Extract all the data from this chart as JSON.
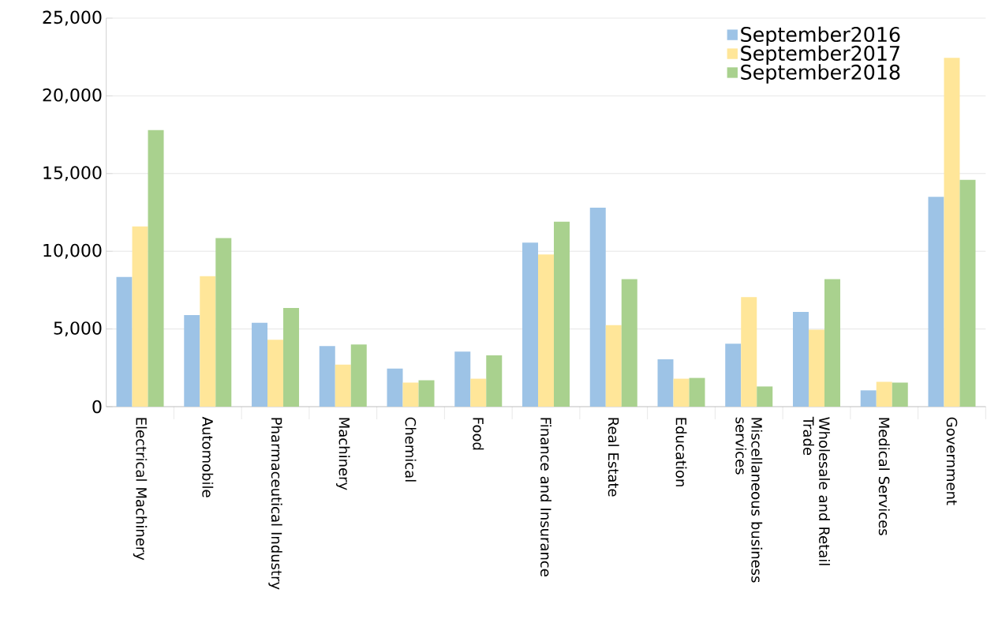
{
  "chart_data": {
    "type": "bar",
    "categories": [
      "Electrical Machinery",
      "Automobile",
      "Pharmaceutical Industry",
      "Machinery",
      "Chemical",
      "Food",
      "Finance and Insurance",
      "Real Estate",
      "Education",
      "Miscellaneous business services",
      "Wholesale and Retail Trade",
      "Medical Services",
      "Government"
    ],
    "series": [
      {
        "name": "September2016",
        "color": "#9dc3e6",
        "values": [
          8350,
          5900,
          5400,
          3900,
          2450,
          3550,
          10550,
          12800,
          3050,
          4050,
          6100,
          1050,
          13500
        ]
      },
      {
        "name": "September2017",
        "color": "#ffe699",
        "values": [
          11600,
          8400,
          4300,
          2700,
          1550,
          1800,
          9800,
          5250,
          1800,
          7050,
          4950,
          1600,
          22450
        ]
      },
      {
        "name": "September2018",
        "color": "#a9d18e",
        "values": [
          17800,
          10850,
          6350,
          4000,
          1700,
          3300,
          11900,
          8200,
          1850,
          1300,
          8200,
          1550,
          14600
        ]
      }
    ],
    "ylim": [
      0,
      25000
    ],
    "yticks": [
      {
        "value": 0,
        "label": "0"
      },
      {
        "value": 5000,
        "label": "5,000"
      },
      {
        "value": 10000,
        "label": "10,000"
      },
      {
        "value": 15000,
        "label": "15,000"
      },
      {
        "value": 20000,
        "label": "20,000"
      },
      {
        "value": 25000,
        "label": "25,000"
      }
    ],
    "grid": "y",
    "legend": "top right"
  }
}
